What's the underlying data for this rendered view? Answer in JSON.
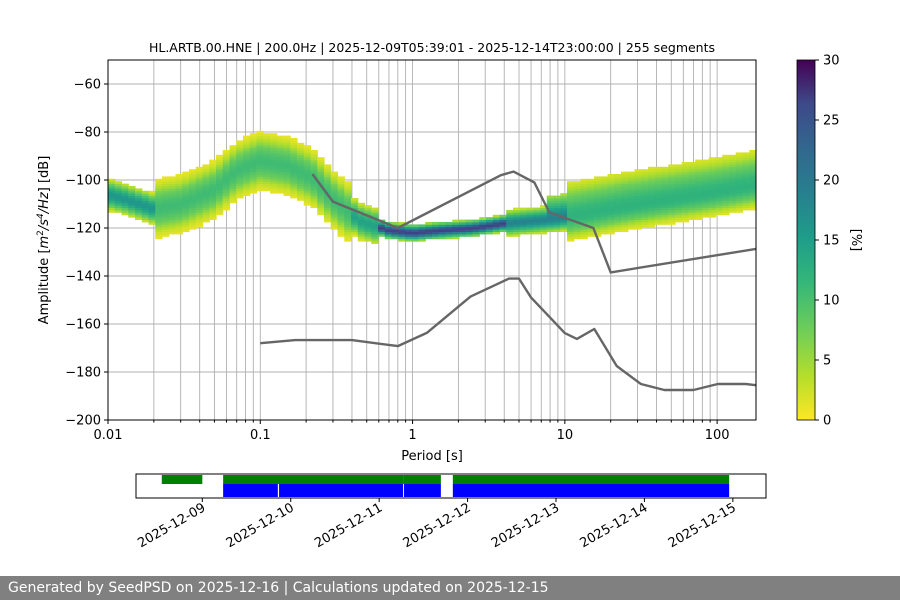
{
  "chart_data": {
    "type": "heatmap",
    "title": "HL.ARTB.00.HNE | 200.0Hz | 2025-12-09T05:39:01 - 2025-12-14T23:00:00 | 255 segments",
    "xlabel": "Period [s]",
    "ylabel": "Amplitude [m²/s⁴/Hz] [dB]",
    "xscale": "log",
    "xlim": [
      0.01,
      180
    ],
    "ylim": [
      -200,
      -50
    ],
    "xticks": [
      0.01,
      0.1,
      1,
      10,
      100
    ],
    "xtick_labels": [
      "0.01",
      "0.1",
      "1",
      "10",
      "100"
    ],
    "yticks": [
      -200,
      -180,
      -160,
      -140,
      -120,
      -100,
      -80,
      -60
    ],
    "ytick_labels": [
      "−200",
      "−180",
      "−160",
      "−140",
      "−120",
      "−100",
      "−80",
      "−60"
    ],
    "grid": true,
    "colorbar": {
      "label": "[%]",
      "range": [
        0,
        30
      ],
      "ticks": [
        0,
        5,
        10,
        15,
        20,
        25,
        30
      ],
      "colormap": "viridis_r"
    },
    "psd_mode_curve": {
      "x": [
        0.01,
        0.013,
        0.02,
        0.03,
        0.05,
        0.07,
        0.1,
        0.15,
        0.22,
        0.3,
        0.45,
        0.7,
        1,
        1.5,
        2.5,
        4,
        6,
        9,
        14,
        25,
        50,
        100,
        180
      ],
      "y": [
        -106,
        -108,
        -112,
        -110,
        -104,
        -96,
        -92,
        -94,
        -99,
        -108,
        -117,
        -121,
        -122,
        -121,
        -120,
        -118,
        -117,
        -116,
        -114,
        -111,
        -108,
        -105,
        -102
      ]
    },
    "high_noise_model": {
      "x": [
        0.22,
        0.3,
        0.8,
        3.8,
        4.6,
        6.3,
        7.9,
        15.4,
        20,
        180
      ],
      "y": [
        -97.5,
        -109,
        -120,
        -98,
        -96.5,
        -101,
        -113.5,
        -120,
        -138.5,
        -128.7
      ]
    },
    "low_noise_model": {
      "x": [
        0.1,
        0.17,
        0.4,
        0.8,
        1.24,
        2.4,
        4.3,
        5,
        6,
        10,
        12,
        15.6,
        21.9,
        31.6,
        45,
        70,
        101,
        154,
        180
      ],
      "y": [
        -168,
        -166.7,
        -166.7,
        -169.2,
        -163.7,
        -148.6,
        -141.1,
        -141.1,
        -149,
        -163.8,
        -166.2,
        -162.1,
        -177.5,
        -185,
        -187.5,
        -187.5,
        -185,
        -185,
        -185.5
      ]
    },
    "availability": {
      "dates": [
        "2025-12-09",
        "2025-12-10",
        "2025-12-11",
        "2025-12-12",
        "2025-12-13",
        "2025-12-14",
        "2025-12-15"
      ],
      "green_segments": [
        [
          "2025-12-08T13:00",
          "2025-12-09T00:00"
        ],
        [
          "2025-12-09T05:39",
          "2025-12-11T06:30"
        ],
        [
          "2025-12-11T06:30",
          "2025-12-11T16:45"
        ],
        [
          "2025-12-11T20:00",
          "2025-12-14T23:00"
        ]
      ],
      "blue_segments": [
        [
          "2025-12-09T05:39",
          "2025-12-09T20:30"
        ],
        [
          "2025-12-09T20:50",
          "2025-12-11T06:30"
        ],
        [
          "2025-12-11T06:45",
          "2025-12-11T16:45"
        ],
        [
          "2025-12-11T20:00",
          "2025-12-14T23:00"
        ]
      ]
    }
  },
  "footer": {
    "text": "Generated by SeedPSD on 2025-12-16 | Calculations updated on 2025-12-15"
  }
}
